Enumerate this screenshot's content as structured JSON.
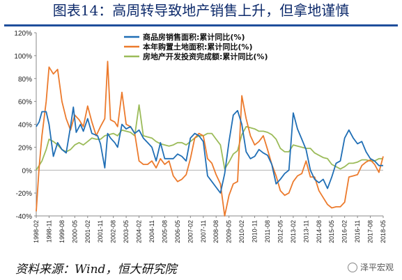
{
  "title": "图表14：高周转导致地产销售上升，但拿地谨慎",
  "source": "资料来源：Wind，恒大研究院",
  "watermark": "泽平宏观",
  "colors": {
    "sales": "#1f6eb5",
    "land": "#ec7a2c",
    "investment": "#9bbb59",
    "title": "#0d2a6b"
  },
  "chart_data": {
    "type": "line",
    "ylim": [
      -40,
      120
    ],
    "yticks": [
      -40,
      -20,
      0,
      20,
      40,
      60,
      80,
      100,
      120
    ],
    "ytick_labels": [
      "-40%",
      "-20%",
      "0%",
      "20%",
      "40%",
      "60%",
      "80%",
      "100%",
      "120%"
    ],
    "y_unit": "%",
    "x_range": [
      "1998-02",
      "2018-05"
    ],
    "x_ticks": [
      "1998-02",
      "1998-11",
      "1999-08",
      "2000-05",
      "2001-02",
      "2001-11",
      "2002-08",
      "2003-05",
      "2004-02",
      "2004-11",
      "2005-08",
      "2006-05",
      "2007-02",
      "2007-11",
      "2008-08",
      "2009-05",
      "2010-02",
      "2010-11",
      "2011-08",
      "2012-05",
      "2013-02",
      "2013-11",
      "2014-08",
      "2015-05",
      "2016-02",
      "2016-11",
      "2017-08",
      "2018-05"
    ],
    "legend_position": "top",
    "grid": false,
    "series": [
      {
        "name": "商品房销售面积:累计同比(%)",
        "points": [
          [
            "1998-02",
            38
          ],
          [
            "1998-04",
            42
          ],
          [
            "1998-06",
            51
          ],
          [
            "1998-09",
            51
          ],
          [
            "1998-11",
            40
          ],
          [
            "1999-02",
            12
          ],
          [
            "1999-05",
            24
          ],
          [
            "1999-08",
            18
          ],
          [
            "1999-11",
            15
          ],
          [
            "2000-02",
            38
          ],
          [
            "2000-04",
            55
          ],
          [
            "2000-06",
            33
          ],
          [
            "2000-09",
            40
          ],
          [
            "2000-11",
            34
          ],
          [
            "2001-02",
            45
          ],
          [
            "2001-05",
            32
          ],
          [
            "2001-09",
            30
          ],
          [
            "2001-11",
            23
          ],
          [
            "2002-02",
            2
          ],
          [
            "2002-04",
            32
          ],
          [
            "2002-06",
            28
          ],
          [
            "2002-09",
            24
          ],
          [
            "2002-11",
            20
          ],
          [
            "2003-02",
            40
          ],
          [
            "2003-05",
            36
          ],
          [
            "2003-08",
            38
          ],
          [
            "2003-11",
            32
          ],
          [
            "2004-02",
            35
          ],
          [
            "2004-05",
            28
          ],
          [
            "2004-08",
            24
          ],
          [
            "2004-11",
            20
          ],
          [
            "2005-02",
            8
          ],
          [
            "2005-05",
            24
          ],
          [
            "2005-08",
            10
          ],
          [
            "2005-11",
            10
          ],
          [
            "2006-02",
            10
          ],
          [
            "2006-05",
            14
          ],
          [
            "2006-08",
            12
          ],
          [
            "2006-11",
            8
          ],
          [
            "2007-02",
            28
          ],
          [
            "2007-05",
            32
          ],
          [
            "2007-08",
            30
          ],
          [
            "2007-11",
            25
          ],
          [
            "2008-02",
            -5
          ],
          [
            "2008-05",
            -10
          ],
          [
            "2008-08",
            -15
          ],
          [
            "2008-11",
            -20
          ],
          [
            "2009-02",
            -3
          ],
          [
            "2009-05",
            25
          ],
          [
            "2009-08",
            48
          ],
          [
            "2009-11",
            52
          ],
          [
            "2010-02",
            40
          ],
          [
            "2010-05",
            16
          ],
          [
            "2010-08",
            10
          ],
          [
            "2010-11",
            12
          ],
          [
            "2011-02",
            18
          ],
          [
            "2011-05",
            15
          ],
          [
            "2011-08",
            13
          ],
          [
            "2011-11",
            5
          ],
          [
            "2012-02",
            -12
          ],
          [
            "2012-05",
            -8
          ],
          [
            "2012-08",
            -3
          ],
          [
            "2012-11",
            0
          ],
          [
            "2013-02",
            50
          ],
          [
            "2013-05",
            36
          ],
          [
            "2013-08",
            27
          ],
          [
            "2013-11",
            18
          ],
          [
            "2014-02",
            0
          ],
          [
            "2014-05",
            -8
          ],
          [
            "2014-08",
            -11
          ],
          [
            "2014-11",
            -8
          ],
          [
            "2015-02",
            -16
          ],
          [
            "2015-05",
            -6
          ],
          [
            "2015-08",
            6
          ],
          [
            "2015-11",
            8
          ],
          [
            "2016-02",
            28
          ],
          [
            "2016-05",
            35
          ],
          [
            "2016-08",
            28
          ],
          [
            "2016-11",
            23
          ],
          [
            "2017-02",
            25
          ],
          [
            "2017-05",
            16
          ],
          [
            "2017-08",
            10
          ],
          [
            "2017-11",
            8
          ],
          [
            "2018-02",
            4
          ],
          [
            "2018-05",
            4
          ]
        ]
      },
      {
        "name": "本年购置土地面积:累计同比(%)",
        "points": [
          [
            "1998-02",
            -36
          ],
          [
            "1998-04",
            2
          ],
          [
            "1998-06",
            30
          ],
          [
            "1998-09",
            60
          ],
          [
            "1998-11",
            90
          ],
          [
            "1999-02",
            84
          ],
          [
            "1999-05",
            88
          ],
          [
            "1999-08",
            60
          ],
          [
            "1999-11",
            45
          ],
          [
            "2000-02",
            35
          ],
          [
            "2000-05",
            48
          ],
          [
            "2000-08",
            44
          ],
          [
            "2000-11",
            38
          ],
          [
            "2001-02",
            56
          ],
          [
            "2001-05",
            42
          ],
          [
            "2001-08",
            30
          ],
          [
            "2001-11",
            38
          ],
          [
            "2002-02",
            45
          ],
          [
            "2002-04",
            95
          ],
          [
            "2002-06",
            44
          ],
          [
            "2002-09",
            42
          ],
          [
            "2002-11",
            38
          ],
          [
            "2003-02",
            68
          ],
          [
            "2003-05",
            40
          ],
          [
            "2003-08",
            38
          ],
          [
            "2003-11",
            32
          ],
          [
            "2004-02",
            8
          ],
          [
            "2004-05",
            5
          ],
          [
            "2004-08",
            5
          ],
          [
            "2004-11",
            8
          ],
          [
            "2005-02",
            2
          ],
          [
            "2005-05",
            10
          ],
          [
            "2005-08",
            5
          ],
          [
            "2005-11",
            8
          ],
          [
            "2006-02",
            -5
          ],
          [
            "2006-05",
            -10
          ],
          [
            "2006-08",
            -8
          ],
          [
            "2006-11",
            -4
          ],
          [
            "2007-02",
            10
          ],
          [
            "2007-05",
            28
          ],
          [
            "2007-08",
            32
          ],
          [
            "2007-11",
            30
          ],
          [
            "2008-02",
            10
          ],
          [
            "2008-05",
            6
          ],
          [
            "2008-08",
            -4
          ],
          [
            "2008-11",
            -12
          ],
          [
            "2009-02",
            -40
          ],
          [
            "2009-05",
            -22
          ],
          [
            "2009-08",
            -12
          ],
          [
            "2009-11",
            -10
          ],
          [
            "2010-02",
            65
          ],
          [
            "2010-05",
            45
          ],
          [
            "2010-08",
            30
          ],
          [
            "2010-11",
            22
          ],
          [
            "2011-02",
            25
          ],
          [
            "2011-05",
            30
          ],
          [
            "2011-08",
            18
          ],
          [
            "2011-11",
            5
          ],
          [
            "2012-02",
            -5
          ],
          [
            "2012-05",
            -18
          ],
          [
            "2012-08",
            -22
          ],
          [
            "2012-11",
            -20
          ],
          [
            "2013-02",
            -10
          ],
          [
            "2013-05",
            -5
          ],
          [
            "2013-08",
            -3
          ],
          [
            "2013-11",
            8
          ],
          [
            "2014-02",
            -6
          ],
          [
            "2014-05",
            -6
          ],
          [
            "2014-08",
            -18
          ],
          [
            "2014-11",
            -24
          ],
          [
            "2015-02",
            -30
          ],
          [
            "2015-05",
            -33
          ],
          [
            "2015-08",
            -32
          ],
          [
            "2015-11",
            -32
          ],
          [
            "2016-02",
            -28
          ],
          [
            "2016-05",
            -6
          ],
          [
            "2016-08",
            -5
          ],
          [
            "2016-11",
            -4
          ],
          [
            "2017-02",
            4
          ],
          [
            "2017-05",
            7
          ],
          [
            "2017-08",
            9
          ],
          [
            "2017-11",
            5
          ],
          [
            "2018-02",
            -2
          ],
          [
            "2018-05",
            12
          ]
        ]
      },
      {
        "name": "房地产开发投资完成额:累计同比(%)",
        "points": [
          [
            "1998-02",
            0
          ],
          [
            "1998-06",
            8
          ],
          [
            "1998-09",
            18
          ],
          [
            "1998-11",
            27
          ],
          [
            "1999-02",
            25
          ],
          [
            "1999-05",
            22
          ],
          [
            "1999-08",
            18
          ],
          [
            "1999-11",
            16
          ],
          [
            "2000-02",
            18
          ],
          [
            "2000-05",
            22
          ],
          [
            "2000-08",
            24
          ],
          [
            "2000-11",
            22
          ],
          [
            "2001-02",
            25
          ],
          [
            "2001-05",
            28
          ],
          [
            "2001-08",
            27
          ],
          [
            "2001-11",
            27
          ],
          [
            "2002-02",
            30
          ],
          [
            "2002-05",
            31
          ],
          [
            "2002-08",
            32
          ],
          [
            "2002-11",
            30
          ],
          [
            "2003-02",
            35
          ],
          [
            "2003-05",
            34
          ],
          [
            "2003-08",
            33
          ],
          [
            "2003-11",
            30
          ],
          [
            "2004-02",
            57
          ],
          [
            "2004-05",
            30
          ],
          [
            "2004-08",
            29
          ],
          [
            "2004-11",
            28
          ],
          [
            "2005-02",
            25
          ],
          [
            "2005-05",
            23
          ],
          [
            "2005-08",
            22
          ],
          [
            "2005-11",
            21
          ],
          [
            "2006-02",
            22
          ],
          [
            "2006-05",
            24
          ],
          [
            "2006-08",
            24
          ],
          [
            "2006-11",
            22
          ],
          [
            "2007-02",
            25
          ],
          [
            "2007-05",
            28
          ],
          [
            "2007-08",
            30
          ],
          [
            "2007-11",
            30
          ],
          [
            "2008-02",
            32
          ],
          [
            "2008-05",
            32
          ],
          [
            "2008-08",
            27
          ],
          [
            "2008-11",
            22
          ],
          [
            "2009-02",
            1
          ],
          [
            "2009-05",
            7
          ],
          [
            "2009-08",
            14
          ],
          [
            "2009-11",
            17
          ],
          [
            "2010-02",
            31
          ],
          [
            "2010-05",
            38
          ],
          [
            "2010-08",
            37
          ],
          [
            "2010-11",
            36
          ],
          [
            "2011-02",
            34
          ],
          [
            "2011-05",
            34
          ],
          [
            "2011-08",
            33
          ],
          [
            "2011-11",
            31
          ],
          [
            "2012-02",
            27
          ],
          [
            "2012-05",
            19
          ],
          [
            "2012-08",
            16
          ],
          [
            "2012-11",
            16
          ],
          [
            "2013-02",
            22
          ],
          [
            "2013-05",
            21
          ],
          [
            "2013-08",
            20
          ],
          [
            "2013-11",
            19
          ],
          [
            "2014-02",
            19
          ],
          [
            "2014-05",
            15
          ],
          [
            "2014-08",
            13
          ],
          [
            "2014-11",
            11
          ],
          [
            "2015-02",
            10
          ],
          [
            "2015-05",
            5
          ],
          [
            "2015-08",
            3
          ],
          [
            "2015-11",
            1
          ],
          [
            "2016-02",
            3
          ],
          [
            "2016-05",
            6
          ],
          [
            "2016-08",
            6
          ],
          [
            "2016-11",
            7
          ],
          [
            "2017-02",
            9
          ],
          [
            "2017-05",
            9
          ],
          [
            "2017-08",
            8
          ],
          [
            "2017-11",
            8
          ],
          [
            "2018-02",
            10
          ],
          [
            "2018-05",
            10
          ]
        ]
      }
    ]
  }
}
